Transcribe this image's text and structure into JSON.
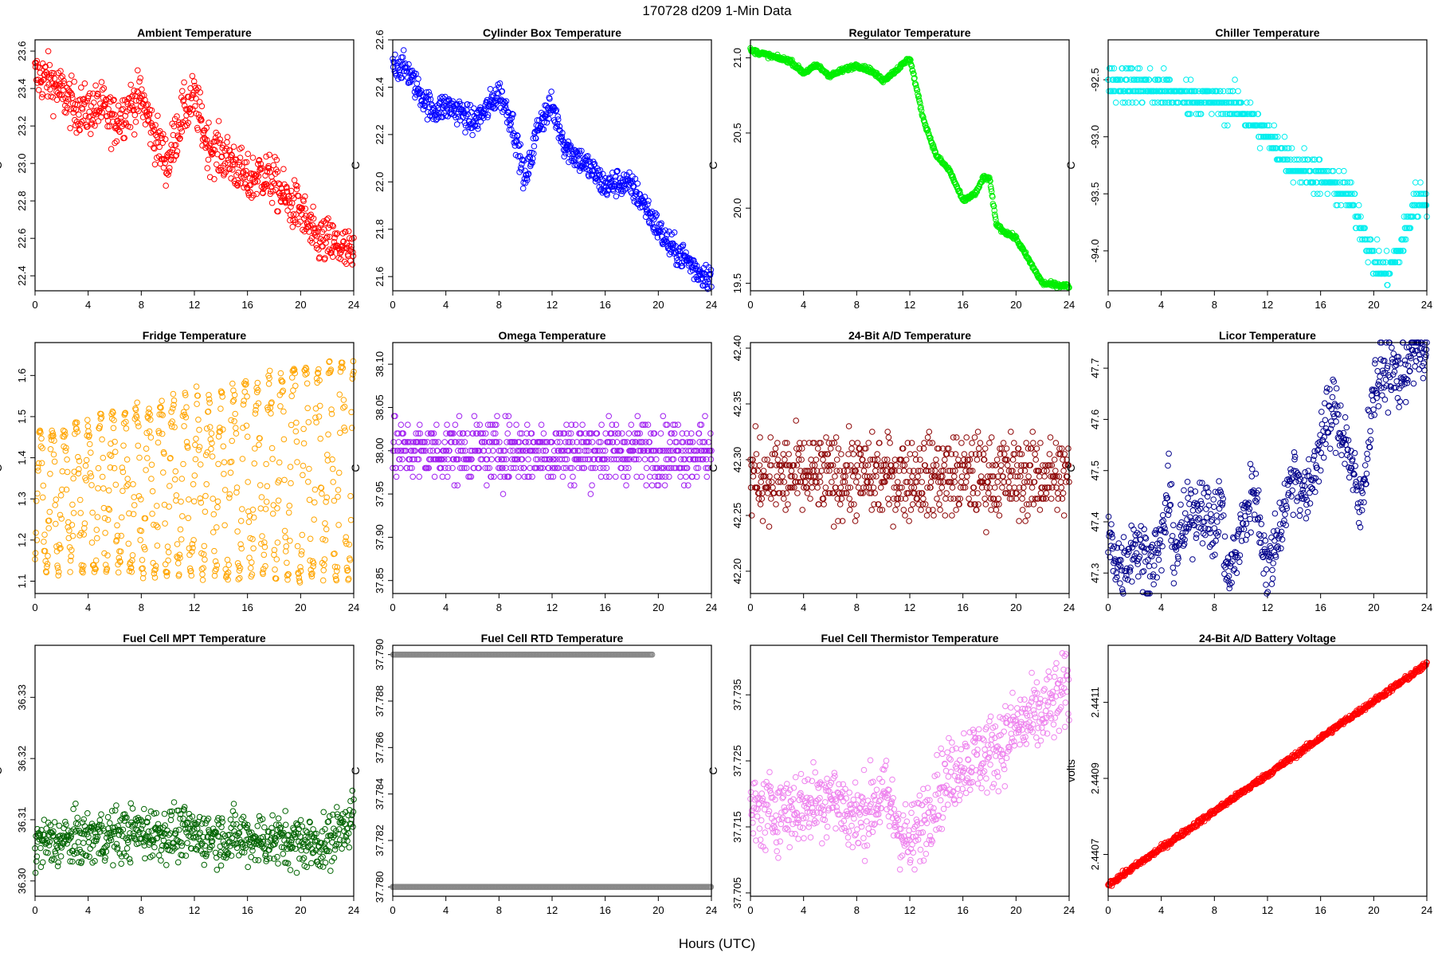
{
  "figure": {
    "title": "170728   d209   1-Min Data",
    "xlabel": "Hours (UTC)"
  },
  "chart_data": [
    {
      "type": "scatter",
      "title": "Ambient Temperature",
      "ylabel": "C",
      "color": "#ff0000",
      "xlim": [
        0,
        24
      ],
      "xticks": [
        0,
        4,
        8,
        12,
        16,
        20,
        24
      ],
      "ylim": [
        22.32,
        23.66
      ],
      "yticks": [
        "22.4",
        "22.6",
        "22.8",
        "23.0",
        "23.2",
        "23.4",
        "23.6"
      ],
      "trend": [
        [
          0,
          23.47
        ],
        [
          1,
          23.45
        ],
        [
          2,
          23.38
        ],
        [
          3,
          23.3
        ],
        [
          4,
          23.28
        ],
        [
          5,
          23.3
        ],
        [
          6,
          23.22
        ],
        [
          7,
          23.3
        ],
        [
          8,
          23.35
        ],
        [
          9,
          23.15
        ],
        [
          10,
          23.0
        ],
        [
          11,
          23.25
        ],
        [
          12,
          23.35
        ],
        [
          13,
          23.1
        ],
        [
          14,
          23.05
        ],
        [
          15,
          23.0
        ],
        [
          16,
          22.9
        ],
        [
          17,
          22.95
        ],
        [
          18,
          22.9
        ],
        [
          19,
          22.8
        ],
        [
          20,
          22.75
        ],
        [
          21,
          22.6
        ],
        [
          22,
          22.58
        ],
        [
          23,
          22.55
        ],
        [
          24,
          22.5
        ]
      ],
      "spread": 0.09
    },
    {
      "type": "scatter",
      "title": "Cylinder Box Temperature",
      "ylabel": "C",
      "color": "#0000ff",
      "xlim": [
        0,
        24
      ],
      "xticks": [
        0,
        4,
        8,
        12,
        16,
        20,
        24
      ],
      "ylim": [
        21.54,
        22.6
      ],
      "yticks": [
        "21.6",
        "21.8",
        "22.0",
        "22.2",
        "22.4",
        "22.6"
      ],
      "trend": [
        [
          0,
          22.5
        ],
        [
          1,
          22.48
        ],
        [
          2,
          22.38
        ],
        [
          3,
          22.3
        ],
        [
          4,
          22.32
        ],
        [
          5,
          22.3
        ],
        [
          6,
          22.25
        ],
        [
          7,
          22.3
        ],
        [
          8,
          22.38
        ],
        [
          9,
          22.25
        ],
        [
          10,
          22.0
        ],
        [
          11,
          22.25
        ],
        [
          12,
          22.32
        ],
        [
          13,
          22.15
        ],
        [
          14,
          22.1
        ],
        [
          15,
          22.05
        ],
        [
          16,
          21.98
        ],
        [
          17,
          22.0
        ],
        [
          18,
          21.98
        ],
        [
          19,
          21.9
        ],
        [
          20,
          21.8
        ],
        [
          21,
          21.72
        ],
        [
          22,
          21.68
        ],
        [
          23,
          21.62
        ],
        [
          24,
          21.6
        ]
      ],
      "spread": 0.04
    },
    {
      "type": "scatter",
      "title": "Regulator Temperature",
      "ylabel": "C",
      "color": "#00ee00",
      "xlim": [
        0,
        24
      ],
      "xticks": [
        0,
        4,
        8,
        12,
        16,
        20,
        24
      ],
      "ylim": [
        19.45,
        21.12
      ],
      "yticks": [
        "19.5",
        "20.0",
        "20.5",
        "21.0"
      ],
      "trend": [
        [
          0,
          21.05
        ],
        [
          2,
          21.0
        ],
        [
          3,
          20.98
        ],
        [
          4,
          20.9
        ],
        [
          5,
          20.95
        ],
        [
          6,
          20.88
        ],
        [
          7,
          20.92
        ],
        [
          8,
          20.95
        ],
        [
          9,
          20.92
        ],
        [
          10,
          20.85
        ],
        [
          11,
          20.92
        ],
        [
          12,
          21.0
        ],
        [
          13,
          20.6
        ],
        [
          14,
          20.35
        ],
        [
          15,
          20.25
        ],
        [
          16,
          20.05
        ],
        [
          17,
          20.1
        ],
        [
          17.5,
          20.2
        ],
        [
          18,
          20.2
        ],
        [
          18.5,
          19.9
        ],
        [
          19,
          19.85
        ],
        [
          20,
          19.8
        ],
        [
          21,
          19.65
        ],
        [
          22,
          19.5
        ],
        [
          24,
          19.48
        ]
      ],
      "spread": 0.01
    },
    {
      "type": "scatter",
      "title": "Chiller Temperature",
      "ylabel": "C",
      "color": "#00eeee",
      "xlim": [
        0,
        24
      ],
      "xticks": [
        0,
        4,
        8,
        12,
        16,
        20,
        24
      ],
      "ylim": [
        -94.35,
        -92.15
      ],
      "yticks": [
        "-94.0",
        "-93.5",
        "-93.0",
        "-92.5"
      ],
      "trend": [
        [
          0,
          -92.5
        ],
        [
          2,
          -92.55
        ],
        [
          4,
          -92.6
        ],
        [
          6,
          -92.65
        ],
        [
          8,
          -92.7
        ],
        [
          10,
          -92.75
        ],
        [
          12,
          -93.0
        ],
        [
          14,
          -93.25
        ],
        [
          16,
          -93.35
        ],
        [
          18,
          -93.5
        ],
        [
          19,
          -93.75
        ],
        [
          20,
          -94.1
        ],
        [
          21,
          -94.2
        ],
        [
          22,
          -94.0
        ],
        [
          23,
          -93.6
        ],
        [
          24,
          -93.5
        ]
      ],
      "spread": 0.1,
      "step": 0.1
    },
    {
      "type": "scatter",
      "title": "Fridge Temperature",
      "ylabel": "C",
      "color": "#ffa500",
      "xlim": [
        0,
        24
      ],
      "xticks": [
        0,
        4,
        8,
        12,
        16,
        20,
        24
      ],
      "ylim": [
        1.07,
        1.68
      ],
      "yticks": [
        "1.1",
        "1.2",
        "1.3",
        "1.4",
        "1.5",
        "1.6"
      ],
      "cycle": {
        "low_start": 1.13,
        "low_end": 1.1,
        "high_start": 1.46,
        "high_end": 1.65,
        "cycles_per_hour": 1.1
      }
    },
    {
      "type": "scatter",
      "title": "Omega Temperature",
      "ylabel": "C",
      "color": "#a020f0",
      "xlim": [
        0,
        24
      ],
      "xticks": [
        0,
        4,
        8,
        12,
        16,
        20,
        24
      ],
      "ylim": [
        37.835,
        38.125
      ],
      "yticks": [
        "37.85",
        "37.90",
        "37.95",
        "38.00",
        "38.05",
        "38.10"
      ],
      "trend": [
        [
          0,
          38.0
        ],
        [
          24,
          38.0
        ]
      ],
      "spread": 0.025,
      "step": 0.01
    },
    {
      "type": "scatter",
      "title": "24-Bit A/D Temperature",
      "ylabel": "C",
      "color": "#8b0000",
      "xlim": [
        0,
        24
      ],
      "xticks": [
        0,
        4,
        8,
        12,
        16,
        20,
        24
      ],
      "ylim": [
        42.18,
        42.405
      ],
      "yticks": [
        "42.20",
        "42.25",
        "42.30",
        "42.35",
        "42.40"
      ],
      "trend": [
        [
          0,
          42.285
        ],
        [
          24,
          42.285
        ]
      ],
      "spread": 0.025,
      "step": 0.005
    },
    {
      "type": "scatter",
      "title": "Licor Temperature",
      "ylabel": "C",
      "color": "#00008b",
      "xlim": [
        0,
        24
      ],
      "xticks": [
        0,
        4,
        8,
        12,
        16,
        20,
        24
      ],
      "ylim": [
        47.26,
        47.75
      ],
      "yticks": [
        "47.3",
        "47.4",
        "47.5",
        "47.6",
        "47.7"
      ],
      "trend": [
        [
          0,
          47.37
        ],
        [
          1,
          47.31
        ],
        [
          2,
          47.36
        ],
        [
          3,
          47.32
        ],
        [
          4,
          47.35
        ],
        [
          4.5,
          47.46
        ],
        [
          5,
          47.34
        ],
        [
          6,
          47.4
        ],
        [
          7,
          47.44
        ],
        [
          8,
          47.38
        ],
        [
          8.5,
          47.45
        ],
        [
          9,
          47.28
        ],
        [
          10,
          47.38
        ],
        [
          11,
          47.47
        ],
        [
          12,
          47.3
        ],
        [
          13,
          47.4
        ],
        [
          14,
          47.5
        ],
        [
          15,
          47.44
        ],
        [
          16,
          47.56
        ],
        [
          17,
          47.62
        ],
        [
          18,
          47.55
        ],
        [
          19,
          47.42
        ],
        [
          20,
          47.66
        ],
        [
          21,
          47.7
        ],
        [
          22,
          47.68
        ],
        [
          23,
          47.74
        ],
        [
          24,
          47.72
        ]
      ],
      "spread": 0.045
    },
    {
      "type": "scatter",
      "title": "Fuel Cell MPT Temperature",
      "ylabel": "C",
      "color": "#006400",
      "xlim": [
        0,
        24
      ],
      "xticks": [
        0,
        4,
        8,
        12,
        16,
        20,
        24
      ],
      "ylim": [
        36.2975,
        36.3385
      ],
      "yticks": [
        "36.30",
        "36.31",
        "36.32",
        "36.33"
      ],
      "trend": [
        [
          0,
          36.306
        ],
        [
          8,
          36.308
        ],
        [
          16,
          36.307
        ],
        [
          22,
          36.306
        ],
        [
          24,
          36.311
        ]
      ],
      "spread": 0.003
    },
    {
      "type": "scatter",
      "title": "Fuel Cell RTD Temperature",
      "ylabel": "C",
      "color": "#888888",
      "xlim": [
        0,
        24
      ],
      "xticks": [
        0,
        4,
        8,
        12,
        16,
        20,
        24
      ],
      "ylim": [
        37.7796,
        37.7904
      ],
      "yticks": [
        "37.780",
        "37.782",
        "37.784",
        "37.786",
        "37.788",
        "37.790"
      ],
      "levels": [
        37.78,
        37.79
      ]
    },
    {
      "type": "scatter",
      "title": "Fuel Cell Thermistor Temperature",
      "ylabel": "C",
      "color": "#ee82ee",
      "xlim": [
        0,
        24
      ],
      "xticks": [
        0,
        4,
        8,
        12,
        16,
        20,
        24
      ],
      "ylim": [
        37.7045,
        37.7425
      ],
      "yticks": [
        "37.705",
        "37.715",
        "37.725",
        "37.735"
      ],
      "trend": [
        [
          0,
          37.717
        ],
        [
          4,
          37.718
        ],
        [
          6,
          37.72
        ],
        [
          8,
          37.716
        ],
        [
          10,
          37.72
        ],
        [
          12,
          37.712
        ],
        [
          14,
          37.72
        ],
        [
          16,
          37.725
        ],
        [
          18,
          37.726
        ],
        [
          20,
          37.73
        ],
        [
          22,
          37.732
        ],
        [
          24,
          37.736
        ]
      ],
      "spread": 0.004
    },
    {
      "type": "scatter",
      "title": "24-Bit A/D Battery Voltage",
      "ylabel": "volts",
      "color": "#ff0000",
      "xlim": [
        0,
        24
      ],
      "xticks": [
        0,
        4,
        8,
        12,
        16,
        20,
        24
      ],
      "ylim": [
        2.44059,
        2.44125
      ],
      "yticks": [
        "2.4407",
        "2.4409",
        "2.4411"
      ],
      "trend": [
        [
          0,
          2.44062
        ],
        [
          24,
          2.4412
        ]
      ],
      "spread": 5e-06
    }
  ]
}
